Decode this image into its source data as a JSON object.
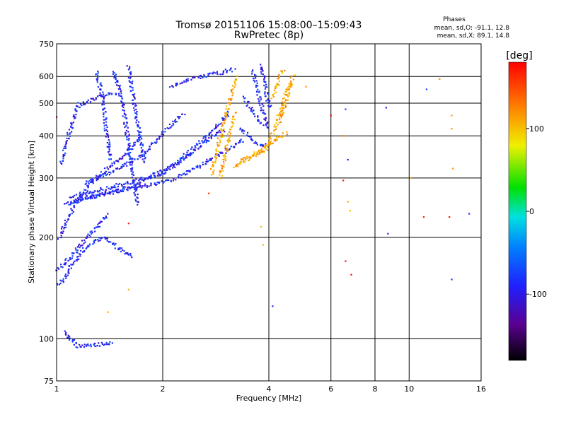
{
  "chart_data": {
    "type": "scatter",
    "title": "Tromsø 20151106 15:08:00–15:09:43",
    "subtitle": "RwPretec (8p)",
    "stats": {
      "heading": "Phases",
      "line_o": "mean, sd,O: -91.1, 12.8",
      "line_x": "mean, sd,X:  89.1, 14.8"
    },
    "xlabel": "Frequency [MHz]",
    "ylabel": "Stationary phase Virtual Height [km]",
    "x_scale": "log",
    "y_scale": "log",
    "xlim": [
      1,
      16
    ],
    "ylim": [
      75,
      750
    ],
    "x_ticks": [
      1,
      2,
      4,
      6,
      8,
      10,
      16
    ],
    "y_ticks": [
      75,
      100,
      200,
      300,
      400,
      500,
      600,
      750
    ],
    "grid": true,
    "colorbar": {
      "label": "[deg]",
      "ticks": [
        100,
        0,
        -100
      ],
      "range": [
        -180,
        180
      ]
    },
    "series": [
      {
        "name": "O",
        "phase": -100,
        "traces": [
          [
            [
              1.0,
              145
            ],
            [
              1.05,
              150
            ],
            [
              1.1,
              165
            ],
            [
              1.2,
              185
            ],
            [
              1.35,
              200
            ],
            [
              1.5,
              185
            ],
            [
              1.65,
              175
            ]
          ],
          [
            [
              1.0,
              160
            ],
            [
              1.1,
              175
            ],
            [
              1.2,
              195
            ],
            [
              1.3,
              215
            ],
            [
              1.4,
              235
            ]
          ],
          [
            [
              1.02,
              200
            ],
            [
              1.08,
              230
            ],
            [
              1.15,
              260
            ],
            [
              1.25,
              290
            ],
            [
              1.4,
              320
            ],
            [
              1.6,
              360
            ],
            [
              1.75,
              400
            ]
          ],
          [
            [
              1.05,
              250
            ],
            [
              1.2,
              262
            ],
            [
              1.5,
              275
            ],
            [
              1.8,
              285
            ],
            [
              2.2,
              300
            ],
            [
              2.6,
              330
            ],
            [
              3.0,
              360
            ],
            [
              3.4,
              390
            ]
          ],
          [
            [
              1.1,
              265
            ],
            [
              1.4,
              280
            ],
            [
              1.8,
              300
            ],
            [
              2.2,
              330
            ],
            [
              2.6,
              380
            ],
            [
              3.0,
              420
            ]
          ],
          [
            [
              1.1,
              255
            ],
            [
              1.5,
              275
            ],
            [
              2.0,
              310
            ],
            [
              2.4,
              360
            ],
            [
              2.8,
              420
            ],
            [
              3.1,
              470
            ]
          ],
          [
            [
              1.2,
              290
            ],
            [
              1.5,
              320
            ],
            [
              1.8,
              360
            ],
            [
              2.0,
              410
            ],
            [
              2.3,
              470
            ]
          ],
          [
            [
              1.03,
              330
            ],
            [
              1.08,
              400
            ],
            [
              1.12,
              460
            ],
            [
              1.15,
              500
            ]
          ],
          [
            [
              1.15,
              490
            ],
            [
              1.3,
              520
            ],
            [
              1.5,
              540
            ]
          ],
          [
            [
              1.45,
              620
            ],
            [
              1.5,
              560
            ],
            [
              1.55,
              480
            ],
            [
              1.6,
              380
            ],
            [
              1.65,
              300
            ],
            [
              1.7,
              250
            ]
          ],
          [
            [
              1.3,
              620
            ],
            [
              1.35,
              520
            ],
            [
              1.38,
              420
            ],
            [
              1.42,
              340
            ]
          ],
          [
            [
              1.6,
              640
            ],
            [
              1.65,
              520
            ],
            [
              1.72,
              400
            ],
            [
              1.78,
              330
            ]
          ],
          [
            [
              2.1,
              560
            ],
            [
              2.4,
              590
            ],
            [
              2.8,
              610
            ],
            [
              3.2,
              630
            ]
          ],
          [
            [
              3.3,
              420
            ],
            [
              3.5,
              400
            ],
            [
              3.7,
              380
            ],
            [
              3.9,
              370
            ],
            [
              4.0,
              380
            ]
          ],
          [
            [
              3.4,
              520
            ],
            [
              3.55,
              480
            ],
            [
              3.7,
              450
            ],
            [
              3.85,
              430
            ]
          ],
          [
            [
              3.6,
              620
            ],
            [
              3.7,
              560
            ],
            [
              3.8,
              500
            ],
            [
              3.9,
              450
            ],
            [
              4.0,
              420
            ]
          ],
          [
            [
              3.8,
              650
            ],
            [
              3.9,
              580
            ],
            [
              3.95,
              520
            ],
            [
              4.05,
              480
            ]
          ],
          [
            [
              1.05,
              105
            ],
            [
              1.15,
              95
            ],
            [
              1.3,
              96
            ],
            [
              1.45,
              97
            ]
          ]
        ],
        "points": [
          [
            6.6,
            480
          ],
          [
            8.6,
            485
          ],
          [
            11.2,
            550
          ],
          [
            14.8,
            235
          ],
          [
            8.7,
            205
          ],
          [
            6.7,
            340
          ],
          [
            4.1,
            125
          ],
          [
            13.2,
            150
          ]
        ]
      },
      {
        "name": "X",
        "phase": 100,
        "traces": [
          [
            [
              2.75,
              310
            ],
            [
              2.85,
              360
            ],
            [
              2.95,
              420
            ],
            [
              3.05,
              480
            ],
            [
              3.15,
              540
            ],
            [
              3.25,
              600
            ]
          ],
          [
            [
              2.9,
              300
            ],
            [
              3.0,
              350
            ],
            [
              3.1,
              410
            ],
            [
              3.2,
              470
            ]
          ],
          [
            [
              3.3,
              330
            ],
            [
              3.6,
              350
            ],
            [
              3.9,
              370
            ],
            [
              4.2,
              390
            ],
            [
              4.5,
              410
            ]
          ],
          [
            [
              4.0,
              380
            ],
            [
              4.15,
              420
            ],
            [
              4.3,
              470
            ],
            [
              4.45,
              520
            ],
            [
              4.6,
              580
            ]
          ],
          [
            [
              4.3,
              440
            ],
            [
              4.45,
              500
            ],
            [
              4.6,
              560
            ],
            [
              4.7,
              610
            ]
          ],
          [
            [
              4.1,
              520
            ],
            [
              4.2,
              560
            ],
            [
              4.3,
              600
            ],
            [
              4.4,
              630
            ]
          ],
          [
            [
              3.2,
              320
            ],
            [
              3.4,
              340
            ],
            [
              3.7,
              355
            ],
            [
              4.0,
              365
            ]
          ]
        ],
        "points": [
          [
            13.2,
            460
          ],
          [
            13.2,
            420
          ],
          [
            13.3,
            320
          ],
          [
            10.1,
            300
          ],
          [
            12.2,
            590
          ],
          [
            3.8,
            215
          ],
          [
            3.85,
            190
          ],
          [
            6.7,
            255
          ],
          [
            6.8,
            240
          ],
          [
            6.55,
            400
          ],
          [
            5.1,
            560
          ],
          [
            1.6,
            140
          ],
          [
            1.4,
            120
          ]
        ]
      },
      {
        "name": "other",
        "phase": 170,
        "points": [
          [
            6.5,
            295
          ],
          [
            6.6,
            170
          ],
          [
            6.85,
            155
          ],
          [
            11.0,
            230
          ],
          [
            13.0,
            230
          ],
          [
            6.0,
            460
          ],
          [
            1.0,
            455
          ],
          [
            1.6,
            220
          ],
          [
            2.7,
            270
          ]
        ]
      }
    ]
  }
}
